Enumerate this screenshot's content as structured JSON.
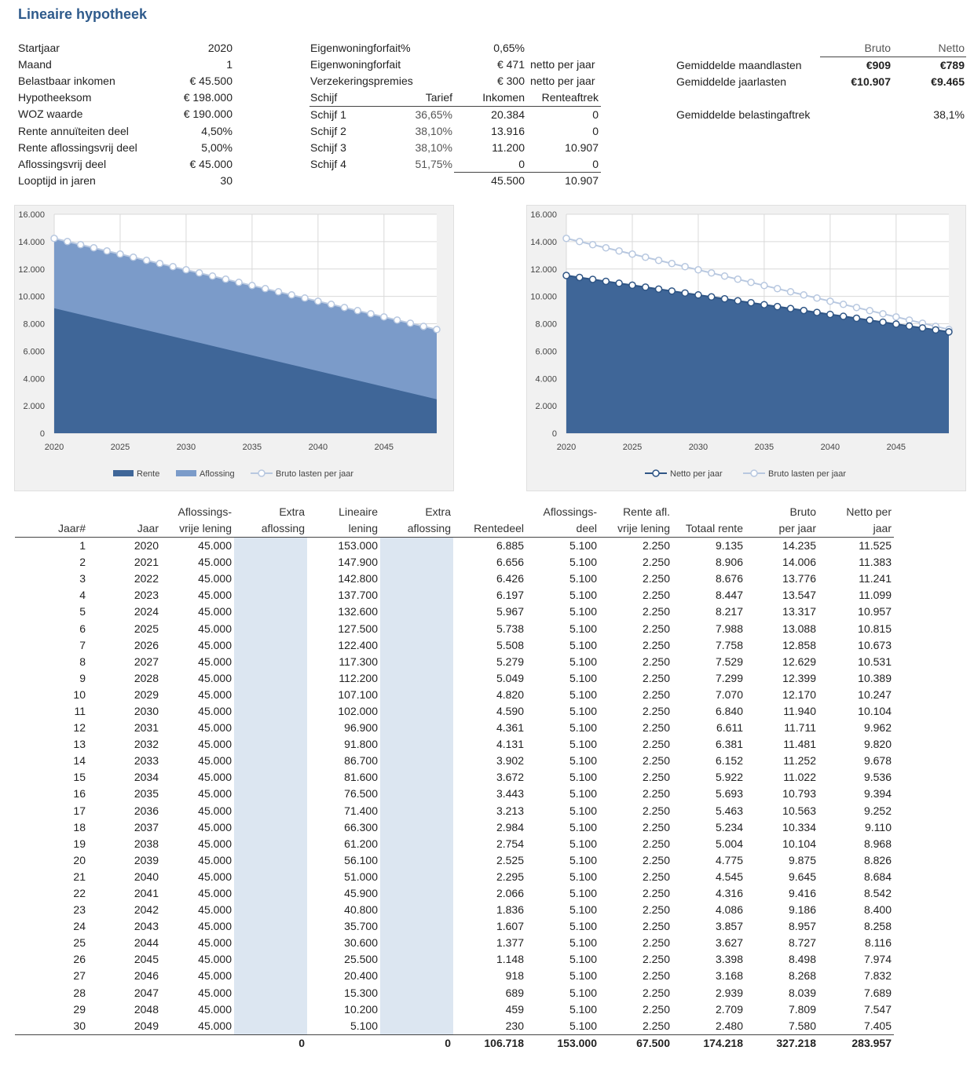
{
  "title": "Lineaire hypotheek",
  "params": [
    {
      "label": "Startjaar",
      "value": "2020"
    },
    {
      "label": "Maand",
      "value": "1"
    },
    {
      "label": "Belastbaar inkomen",
      "value": "€ 45.500"
    },
    {
      "label": "Hypotheeksom",
      "value": "€ 198.000"
    },
    {
      "label": "WOZ waarde",
      "value": "€ 190.000"
    },
    {
      "label": "Rente annuïteiten deel",
      "value": "4,50%"
    },
    {
      "label": "Rente aflossingsvrij deel",
      "value": "5,00%"
    },
    {
      "label": "Aflossingsvrij deel",
      "value": "€ 45.000"
    },
    {
      "label": "Looptijd in jaren",
      "value": "30"
    }
  ],
  "forfait": [
    {
      "label": "Eigenwoningforfait%",
      "value": "0,65%",
      "note": ""
    },
    {
      "label": "Eigenwoningforfait",
      "value": "€ 471",
      "note": "netto per jaar"
    },
    {
      "label": "Verzekeringspremies",
      "value": "€ 300",
      "note": "netto per jaar"
    }
  ],
  "schijf": {
    "headers": {
      "schijf": "Schijf",
      "tarief": "Tarief",
      "inkomen": "Inkomen",
      "renteaftrek": "Renteaftrek"
    },
    "rows": [
      {
        "schijf": "Schijf 1",
        "tarief": "36,65%",
        "inkomen": "20.384",
        "renteaftrek": "0"
      },
      {
        "schijf": "Schijf 2",
        "tarief": "38,10%",
        "inkomen": "13.916",
        "renteaftrek": "0"
      },
      {
        "schijf": "Schijf 3",
        "tarief": "38,10%",
        "inkomen": "11.200",
        "renteaftrek": "10.907"
      },
      {
        "schijf": "Schijf 4",
        "tarief": "51,75%",
        "inkomen": "0",
        "renteaftrek": "0"
      }
    ],
    "total_inkomen": "45.500",
    "total_renteaftrek": "10.907"
  },
  "summary": {
    "col_bruto": "Bruto",
    "col_netto": "Netto",
    "rows": [
      {
        "label": "Gemiddelde maandlasten",
        "bruto": "€909",
        "netto": "€789"
      },
      {
        "label": "Gemiddelde jaarlasten",
        "bruto": "€10.907",
        "netto": "€9.465"
      }
    ],
    "aftrek_label": "Gemiddelde belastingaftrek",
    "aftrek_value": "38,1%"
  },
  "chart_data": [
    {
      "type": "area",
      "x": [
        2020,
        2021,
        2022,
        2023,
        2024,
        2025,
        2026,
        2027,
        2028,
        2029,
        2030,
        2031,
        2032,
        2033,
        2034,
        2035,
        2036,
        2037,
        2038,
        2039,
        2040,
        2041,
        2042,
        2043,
        2044,
        2045,
        2046,
        2047,
        2048,
        2049
      ],
      "xticks": [
        "2020",
        "2025",
        "2030",
        "2035",
        "2040",
        "2045"
      ],
      "yticks": [
        "0",
        "2.000",
        "4.000",
        "6.000",
        "8.000",
        "10.000",
        "12.000",
        "14.000",
        "16.000"
      ],
      "ylim": [
        0,
        16000
      ],
      "legend_position": "bottom",
      "series": [
        {
          "name": "Rente",
          "kind": "area",
          "color": "#3f6698",
          "values": [
            9135,
            8906,
            8676,
            8447,
            8217,
            7988,
            7758,
            7529,
            7299,
            7070,
            6840,
            6611,
            6381,
            6152,
            5922,
            5693,
            5463,
            5234,
            5004,
            4775,
            4545,
            4316,
            4086,
            3857,
            3627,
            3398,
            3168,
            2939,
            2709,
            2480
          ]
        },
        {
          "name": "Aflossing",
          "kind": "area",
          "color": "#7b9bc9",
          "values": [
            5100,
            5100,
            5100,
            5100,
            5100,
            5100,
            5100,
            5100,
            5100,
            5100,
            5100,
            5100,
            5100,
            5100,
            5100,
            5100,
            5100,
            5100,
            5100,
            5100,
            5100,
            5100,
            5100,
            5100,
            5100,
            5100,
            5100,
            5100,
            5100,
            5100
          ]
        },
        {
          "name": "Bruto lasten per jaar",
          "kind": "line",
          "color": "#b8c8e0",
          "values": [
            14235,
            14006,
            13776,
            13547,
            13317,
            13088,
            12858,
            12629,
            12399,
            12170,
            11940,
            11711,
            11481,
            11252,
            11022,
            10793,
            10563,
            10334,
            10104,
            9875,
            9645,
            9416,
            9186,
            8957,
            8727,
            8498,
            8268,
            8039,
            7809,
            7580
          ]
        }
      ]
    },
    {
      "type": "area",
      "x": [
        2020,
        2021,
        2022,
        2023,
        2024,
        2025,
        2026,
        2027,
        2028,
        2029,
        2030,
        2031,
        2032,
        2033,
        2034,
        2035,
        2036,
        2037,
        2038,
        2039,
        2040,
        2041,
        2042,
        2043,
        2044,
        2045,
        2046,
        2047,
        2048,
        2049
      ],
      "xticks": [
        "2020",
        "2025",
        "2030",
        "2035",
        "2040",
        "2045"
      ],
      "yticks": [
        "0",
        "2.000",
        "4.000",
        "6.000",
        "8.000",
        "10.000",
        "12.000",
        "14.000",
        "16.000"
      ],
      "ylim": [
        0,
        16000
      ],
      "legend_position": "bottom",
      "series": [
        {
          "name": "Netto per jaar",
          "kind": "area-line",
          "color": "#3f6698",
          "values": [
            11525,
            11383,
            11241,
            11099,
            10957,
            10815,
            10673,
            10531,
            10389,
            10247,
            10104,
            9962,
            9820,
            9678,
            9536,
            9394,
            9252,
            9110,
            8968,
            8826,
            8684,
            8542,
            8400,
            8258,
            8116,
            7974,
            7832,
            7689,
            7547,
            7405
          ]
        },
        {
          "name": "Bruto lasten per jaar",
          "kind": "line",
          "color": "#b8c8e0",
          "values": [
            14235,
            14006,
            13776,
            13547,
            13317,
            13088,
            12858,
            12629,
            12399,
            12170,
            11940,
            11711,
            11481,
            11252,
            11022,
            10793,
            10563,
            10334,
            10104,
            9875,
            9645,
            9416,
            9186,
            8957,
            8727,
            8498,
            8268,
            8039,
            7809,
            7580
          ]
        }
      ]
    }
  ],
  "table": {
    "headers": [
      [
        "",
        "Jaar#"
      ],
      [
        "",
        "Jaar"
      ],
      [
        "Aflossings-",
        "vrije lening"
      ],
      [
        "Extra",
        "aflossing"
      ],
      [
        "Lineaire",
        "lening"
      ],
      [
        "Extra",
        "aflossing"
      ],
      [
        "",
        "Rentedeel"
      ],
      [
        "Aflossings-",
        "deel"
      ],
      [
        "Rente afl.",
        "vrije lening"
      ],
      [
        "",
        "Totaal rente"
      ],
      [
        "Bruto",
        "per jaar"
      ],
      [
        "Netto per",
        "jaar"
      ]
    ],
    "rows": [
      [
        "1",
        "2020",
        "45.000",
        "",
        "153.000",
        "",
        "6.885",
        "5.100",
        "2.250",
        "9.135",
        "14.235",
        "11.525"
      ],
      [
        "2",
        "2021",
        "45.000",
        "",
        "147.900",
        "",
        "6.656",
        "5.100",
        "2.250",
        "8.906",
        "14.006",
        "11.383"
      ],
      [
        "3",
        "2022",
        "45.000",
        "",
        "142.800",
        "",
        "6.426",
        "5.100",
        "2.250",
        "8.676",
        "13.776",
        "11.241"
      ],
      [
        "4",
        "2023",
        "45.000",
        "",
        "137.700",
        "",
        "6.197",
        "5.100",
        "2.250",
        "8.447",
        "13.547",
        "11.099"
      ],
      [
        "5",
        "2024",
        "45.000",
        "",
        "132.600",
        "",
        "5.967",
        "5.100",
        "2.250",
        "8.217",
        "13.317",
        "10.957"
      ],
      [
        "6",
        "2025",
        "45.000",
        "",
        "127.500",
        "",
        "5.738",
        "5.100",
        "2.250",
        "7.988",
        "13.088",
        "10.815"
      ],
      [
        "7",
        "2026",
        "45.000",
        "",
        "122.400",
        "",
        "5.508",
        "5.100",
        "2.250",
        "7.758",
        "12.858",
        "10.673"
      ],
      [
        "8",
        "2027",
        "45.000",
        "",
        "117.300",
        "",
        "5.279",
        "5.100",
        "2.250",
        "7.529",
        "12.629",
        "10.531"
      ],
      [
        "9",
        "2028",
        "45.000",
        "",
        "112.200",
        "",
        "5.049",
        "5.100",
        "2.250",
        "7.299",
        "12.399",
        "10.389"
      ],
      [
        "10",
        "2029",
        "45.000",
        "",
        "107.100",
        "",
        "4.820",
        "5.100",
        "2.250",
        "7.070",
        "12.170",
        "10.247"
      ],
      [
        "11",
        "2030",
        "45.000",
        "",
        "102.000",
        "",
        "4.590",
        "5.100",
        "2.250",
        "6.840",
        "11.940",
        "10.104"
      ],
      [
        "12",
        "2031",
        "45.000",
        "",
        "96.900",
        "",
        "4.361",
        "5.100",
        "2.250",
        "6.611",
        "11.711",
        "9.962"
      ],
      [
        "13",
        "2032",
        "45.000",
        "",
        "91.800",
        "",
        "4.131",
        "5.100",
        "2.250",
        "6.381",
        "11.481",
        "9.820"
      ],
      [
        "14",
        "2033",
        "45.000",
        "",
        "86.700",
        "",
        "3.902",
        "5.100",
        "2.250",
        "6.152",
        "11.252",
        "9.678"
      ],
      [
        "15",
        "2034",
        "45.000",
        "",
        "81.600",
        "",
        "3.672",
        "5.100",
        "2.250",
        "5.922",
        "11.022",
        "9.536"
      ],
      [
        "16",
        "2035",
        "45.000",
        "",
        "76.500",
        "",
        "3.443",
        "5.100",
        "2.250",
        "5.693",
        "10.793",
        "9.394"
      ],
      [
        "17",
        "2036",
        "45.000",
        "",
        "71.400",
        "",
        "3.213",
        "5.100",
        "2.250",
        "5.463",
        "10.563",
        "9.252"
      ],
      [
        "18",
        "2037",
        "45.000",
        "",
        "66.300",
        "",
        "2.984",
        "5.100",
        "2.250",
        "5.234",
        "10.334",
        "9.110"
      ],
      [
        "19",
        "2038",
        "45.000",
        "",
        "61.200",
        "",
        "2.754",
        "5.100",
        "2.250",
        "5.004",
        "10.104",
        "8.968"
      ],
      [
        "20",
        "2039",
        "45.000",
        "",
        "56.100",
        "",
        "2.525",
        "5.100",
        "2.250",
        "4.775",
        "9.875",
        "8.826"
      ],
      [
        "21",
        "2040",
        "45.000",
        "",
        "51.000",
        "",
        "2.295",
        "5.100",
        "2.250",
        "4.545",
        "9.645",
        "8.684"
      ],
      [
        "22",
        "2041",
        "45.000",
        "",
        "45.900",
        "",
        "2.066",
        "5.100",
        "2.250",
        "4.316",
        "9.416",
        "8.542"
      ],
      [
        "23",
        "2042",
        "45.000",
        "",
        "40.800",
        "",
        "1.836",
        "5.100",
        "2.250",
        "4.086",
        "9.186",
        "8.400"
      ],
      [
        "24",
        "2043",
        "45.000",
        "",
        "35.700",
        "",
        "1.607",
        "5.100",
        "2.250",
        "3.857",
        "8.957",
        "8.258"
      ],
      [
        "25",
        "2044",
        "45.000",
        "",
        "30.600",
        "",
        "1.377",
        "5.100",
        "2.250",
        "3.627",
        "8.727",
        "8.116"
      ],
      [
        "26",
        "2045",
        "45.000",
        "",
        "25.500",
        "",
        "1.148",
        "5.100",
        "2.250",
        "3.398",
        "8.498",
        "7.974"
      ],
      [
        "27",
        "2046",
        "45.000",
        "",
        "20.400",
        "",
        "918",
        "5.100",
        "2.250",
        "3.168",
        "8.268",
        "7.832"
      ],
      [
        "28",
        "2047",
        "45.000",
        "",
        "15.300",
        "",
        "689",
        "5.100",
        "2.250",
        "2.939",
        "8.039",
        "7.689"
      ],
      [
        "29",
        "2048",
        "45.000",
        "",
        "10.200",
        "",
        "459",
        "5.100",
        "2.250",
        "2.709",
        "7.809",
        "7.547"
      ],
      [
        "30",
        "2049",
        "45.000",
        "",
        "5.100",
        "",
        "230",
        "5.100",
        "2.250",
        "2.480",
        "7.580",
        "7.405"
      ]
    ],
    "totals": [
      "",
      "",
      "",
      "0",
      "",
      "0",
      "106.718",
      "153.000",
      "67.500",
      "174.218",
      "327.218",
      "283.957"
    ]
  }
}
